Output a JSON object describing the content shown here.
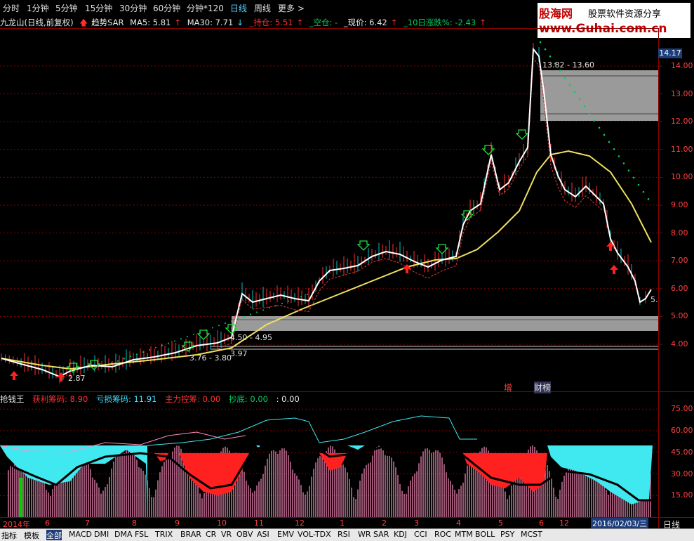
{
  "toolbar": {
    "periods": [
      "分时",
      "1分钟",
      "5分钟",
      "15分钟",
      "30分钟",
      "60分钟",
      "分钟*120",
      "日线",
      "周线",
      "更多 >"
    ]
  },
  "logo": {
    "name": "股海网",
    "slogan": "股票软件资源分享",
    "url": "www.Guhai.com.cn"
  },
  "info": {
    "stock": "九龙山(日线,前复权)",
    "sar": "趋势SAR",
    "ma5": "MA5: 5.81",
    "ma30": "MA30: 7.71",
    "hold": "_持仓: 5.51",
    "empty": "_空仓: -",
    "price": "_现价: 6.42",
    "chg10": "_10日涨跌%: -2.43"
  },
  "price_axis": {
    "current": "14.17",
    "ticks": [
      "14.00",
      "13.00",
      "12.00",
      "11.00",
      "10.00",
      "9.00",
      "8.00",
      "7.00",
      "6.00",
      "5.00",
      "4.00"
    ]
  },
  "annotations": {
    "zone_high": "13.82 - 13.60",
    "zone_mid": "4.50 - 4.95",
    "zone_low": "3.76 - 3.80",
    "low_val": "3.97",
    "low_price": "2.87",
    "last_label": "5.",
    "tag_increase": "增",
    "tag_list": "财榜"
  },
  "indicator": {
    "name": "抢钱王",
    "profit": "获利筹码: 8.90",
    "loss": "亏损筹码: 11.91",
    "control": "主力控筹: 0.00",
    "bottom": "抄底: 0.00",
    "extra": ": 0.00",
    "ticks": [
      "75.00",
      "60.00",
      "45.00",
      "30.00",
      "15.00"
    ]
  },
  "time_axis": {
    "labels": [
      "2014年",
      "6",
      "7",
      "8",
      "9",
      "10",
      "11",
      "12",
      "1",
      "2",
      "3",
      "4",
      "5",
      "6",
      "12"
    ],
    "date_box": "2016/02/03/三",
    "period": "日线"
  },
  "bottom_tabs": [
    "指标",
    "模板",
    "全部",
    "MACD",
    "DMI",
    "DMA",
    "FSL",
    "TRIX",
    "BRAR",
    "CR",
    "VR",
    "OBV",
    "ASI",
    "EMV",
    "VOL-TDX",
    "RSI",
    "WR",
    "SAR",
    "KDJ",
    "CCI",
    "ROC",
    "MTM",
    "BOLL",
    "PSY",
    "MCST"
  ],
  "colors": {
    "up": "#ff3030",
    "down": "#00d060",
    "ma_slow": "#f0e060",
    "price_line": "#ffffff",
    "profit": "#ff2020",
    "loss": "#40e8f0",
    "bars": "#ff90c0"
  }
}
